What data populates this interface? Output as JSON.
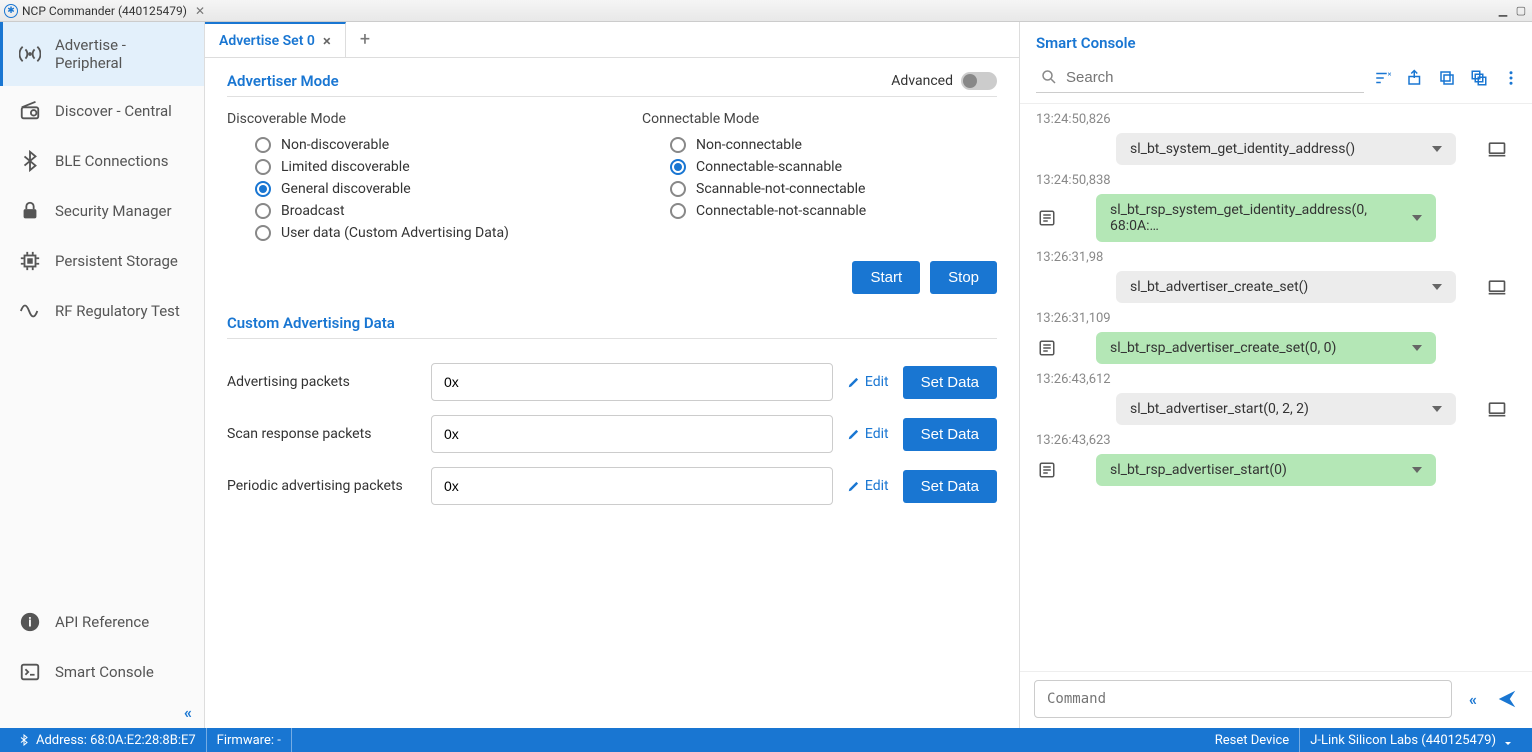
{
  "titleBar": {
    "title": "NCP Commander (440125479)"
  },
  "sidebar": {
    "items": [
      {
        "label": "Advertise - Peripheral",
        "icon": "broadcast",
        "active": true
      },
      {
        "label": "Discover - Central",
        "icon": "radio"
      },
      {
        "label": "BLE Connections",
        "icon": "bluetooth"
      },
      {
        "label": "Security Manager",
        "icon": "lock"
      },
      {
        "label": "Persistent Storage",
        "icon": "chip"
      },
      {
        "label": "RF Regulatory Test",
        "icon": "wave"
      }
    ],
    "bottom": [
      {
        "label": "API Reference",
        "icon": "info"
      },
      {
        "label": "Smart Console",
        "icon": "terminal"
      }
    ]
  },
  "tabs": {
    "active": {
      "label": "Advertise Set 0"
    }
  },
  "advertiser": {
    "modeTitle": "Advertiser Mode",
    "advancedLabel": "Advanced",
    "discoverable": {
      "label": "Discoverable Mode",
      "options": [
        "Non-discoverable",
        "Limited discoverable",
        "General discoverable",
        "Broadcast",
        "User data (Custom Advertising Data)"
      ],
      "selected": 2
    },
    "connectable": {
      "label": "Connectable Mode",
      "options": [
        "Non-connectable",
        "Connectable-scannable",
        "Scannable-not-connectable",
        "Connectable-not-scannable"
      ],
      "selected": 1
    },
    "startLabel": "Start",
    "stopLabel": "Stop"
  },
  "customData": {
    "title": "Custom Advertising Data",
    "editLabel": "Edit",
    "setDataLabel": "Set Data",
    "fields": [
      {
        "label": "Advertising packets",
        "value": "0x"
      },
      {
        "label": "Scan response packets",
        "value": "0x"
      },
      {
        "label": "Periodic advertising packets",
        "value": "0x"
      }
    ]
  },
  "smartConsole": {
    "title": "Smart Console",
    "searchPlaceholder": "Search",
    "commandPlaceholder": "Command",
    "logs": [
      {
        "time": "13:24:50,826",
        "kind": "cmd",
        "text": "sl_bt_system_get_identity_address()"
      },
      {
        "time": "13:24:50,838",
        "kind": "rsp",
        "text": "sl_bt_rsp_system_get_identity_address(0, 68:0A:…"
      },
      {
        "time": "13:26:31,98",
        "kind": "cmd",
        "text": "sl_bt_advertiser_create_set()"
      },
      {
        "time": "13:26:31,109",
        "kind": "rsp",
        "text": "sl_bt_rsp_advertiser_create_set(0, 0)"
      },
      {
        "time": "13:26:43,612",
        "kind": "cmd",
        "text": "sl_bt_advertiser_start(0, 2, 2)"
      },
      {
        "time": "13:26:43,623",
        "kind": "rsp",
        "text": "sl_bt_rsp_advertiser_start(0)"
      }
    ]
  },
  "statusBar": {
    "address": "Address: 68:0A:E2:28:8B:E7",
    "firmware": "Firmware: -",
    "reset": "Reset Device",
    "jlink": "J-Link Silicon Labs (440125479)"
  },
  "colors": {
    "primary": "#1976d2",
    "chipGray": "#ececec",
    "chipGreen": "#b4e7b6",
    "sidebarActive": "#e3f0fb"
  }
}
